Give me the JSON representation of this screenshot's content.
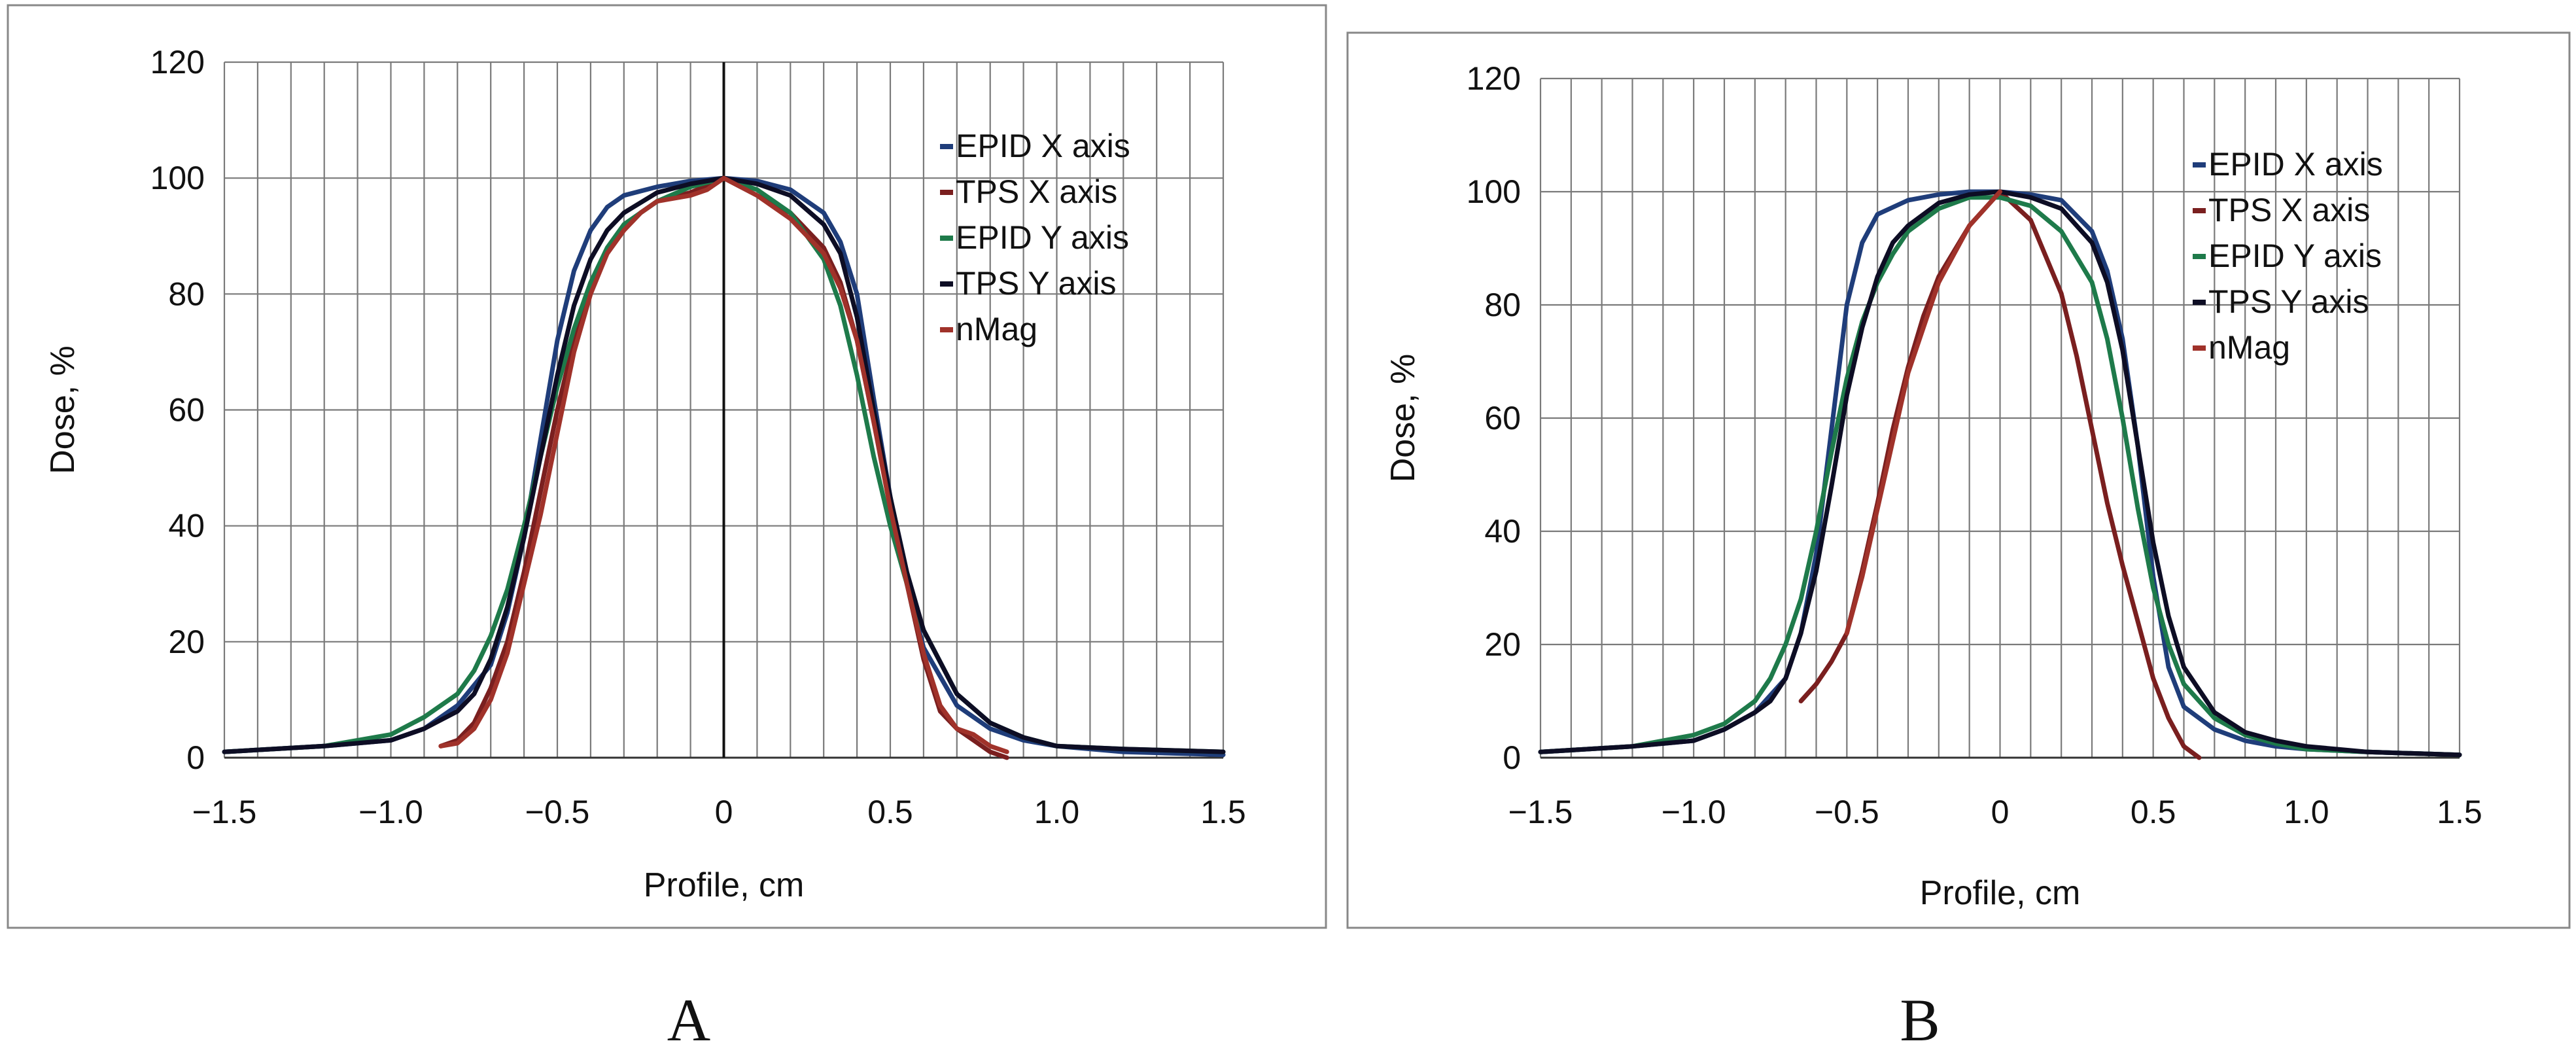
{
  "chart_data": [
    {
      "type": "line",
      "panel_label": "A",
      "title": "",
      "xlabel": "Profile, cm",
      "ylabel": "Dose, %",
      "xlim": [
        -1.5,
        1.5
      ],
      "ylim": [
        0,
        120
      ],
      "xticks": [
        -1.5,
        -1.0,
        -0.5,
        0,
        0.5,
        1.0,
        1.5
      ],
      "xtick_labels": [
        "−1.5",
        "−1.0",
        "−0.5",
        "0",
        "0.5",
        "1.0",
        "1.5"
      ],
      "yticks": [
        0,
        20,
        40,
        60,
        80,
        100,
        120
      ],
      "ytick_labels": [
        "0",
        "20",
        "40",
        "60",
        "80",
        "100",
        "120"
      ],
      "grid": true,
      "legend_position": "top-right",
      "series": [
        {
          "name": "EPID X axis",
          "color": "#1f3d7a",
          "x": [
            -1.5,
            -1.2,
            -1.0,
            -0.9,
            -0.8,
            -0.7,
            -0.65,
            -0.6,
            -0.55,
            -0.5,
            -0.45,
            -0.4,
            -0.35,
            -0.3,
            -0.2,
            -0.1,
            0,
            0.1,
            0.2,
            0.3,
            0.35,
            0.4,
            0.45,
            0.5,
            0.55,
            0.6,
            0.7,
            0.8,
            0.9,
            1.0,
            1.2,
            1.5
          ],
          "y": [
            1,
            2,
            3,
            5,
            9,
            16,
            25,
            38,
            55,
            72,
            84,
            91,
            95,
            97,
            98.5,
            99.5,
            100,
            99.5,
            98,
            94,
            89,
            80,
            62,
            45,
            30,
            19,
            9,
            5,
            3,
            2,
            1,
            0.5
          ]
        },
        {
          "name": "TPS X axis",
          "color": "#7a1f1f",
          "x": [
            -0.85,
            -0.8,
            -0.75,
            -0.7,
            -0.65,
            -0.6,
            -0.55,
            -0.5,
            -0.45,
            -0.4,
            -0.35,
            -0.3,
            -0.25,
            -0.2,
            -0.1,
            0,
            0.1,
            0.2,
            0.3,
            0.35,
            0.4,
            0.45,
            0.5,
            0.55,
            0.6,
            0.65,
            0.7,
            0.75,
            0.8,
            0.85
          ],
          "y": [
            2,
            3,
            6,
            12,
            20,
            32,
            46,
            60,
            72,
            81,
            87,
            91,
            94,
            96,
            97.5,
            100,
            97,
            94,
            88,
            82,
            72,
            58,
            44,
            30,
            17,
            8,
            5,
            3,
            1,
            0
          ]
        },
        {
          "name": "EPID Y axis",
          "color": "#1e7a4a",
          "x": [
            -1.5,
            -1.2,
            -1.0,
            -0.9,
            -0.8,
            -0.75,
            -0.7,
            -0.65,
            -0.6,
            -0.55,
            -0.5,
            -0.45,
            -0.4,
            -0.35,
            -0.3,
            -0.2,
            -0.1,
            0,
            0.1,
            0.2,
            0.3,
            0.35,
            0.4,
            0.45,
            0.5,
            0.55,
            0.6,
            0.7,
            0.8,
            0.9,
            1.0,
            1.2,
            1.5
          ],
          "y": [
            1,
            2,
            4,
            7,
            11,
            15,
            21,
            29,
            40,
            52,
            64,
            74,
            82,
            88,
            92,
            96,
            98.5,
            100,
            98,
            94,
            86,
            78,
            66,
            52,
            40,
            30,
            22,
            11,
            6,
            3.5,
            2,
            1.5,
            1
          ]
        },
        {
          "name": "TPS Y axis",
          "color": "#0d0d24",
          "x": [
            -1.5,
            -1.2,
            -1.0,
            -0.9,
            -0.8,
            -0.75,
            -0.7,
            -0.65,
            -0.6,
            -0.55,
            -0.5,
            -0.45,
            -0.4,
            -0.35,
            -0.3,
            -0.2,
            -0.1,
            0,
            0.1,
            0.2,
            0.3,
            0.35,
            0.4,
            0.45,
            0.5,
            0.55,
            0.6,
            0.7,
            0.8,
            0.9,
            1.0,
            1.2,
            1.5
          ],
          "y": [
            1,
            2,
            3,
            5,
            8,
            11,
            17,
            26,
            38,
            52,
            66,
            78,
            86,
            91,
            94,
            97.5,
            99,
            100,
            99,
            97,
            92,
            87,
            76,
            60,
            45,
            32,
            22,
            11,
            6,
            3.5,
            2,
            1.5,
            1
          ]
        },
        {
          "name": "nMag",
          "color": "#a0322a",
          "x": [
            -0.85,
            -0.8,
            -0.75,
            -0.7,
            -0.65,
            -0.6,
            -0.55,
            -0.5,
            -0.45,
            -0.4,
            -0.35,
            -0.3,
            -0.25,
            -0.2,
            -0.1,
            -0.05,
            0,
            0.1,
            0.2,
            0.3,
            0.35,
            0.4,
            0.45,
            0.5,
            0.55,
            0.6,
            0.65,
            0.7,
            0.75,
            0.8,
            0.85
          ],
          "y": [
            2,
            2.5,
            5,
            10,
            18,
            30,
            42,
            56,
            70,
            80,
            87,
            91,
            94,
            96,
            97,
            98,
            100,
            97,
            93,
            87,
            81,
            72,
            58,
            43,
            30,
            18,
            9,
            5,
            4,
            2,
            1
          ]
        }
      ]
    },
    {
      "type": "line",
      "panel_label": "B",
      "title": "",
      "xlabel": "Profile, cm",
      "ylabel": "Dose, %",
      "xlim": [
        -1.5,
        1.5
      ],
      "ylim": [
        0,
        120
      ],
      "xticks": [
        -1.5,
        -1.0,
        -0.5,
        0,
        0.5,
        1.0,
        1.5
      ],
      "xtick_labels": [
        "−1.5",
        "−1.0",
        "−0.5",
        "0",
        "0.5",
        "1.0",
        "1.5"
      ],
      "yticks": [
        0,
        20,
        40,
        60,
        80,
        100,
        120
      ],
      "ytick_labels": [
        "0",
        "20",
        "40",
        "60",
        "80",
        "100",
        "120"
      ],
      "grid": true,
      "legend_position": "top-right",
      "series": [
        {
          "name": "EPID X axis",
          "color": "#1f3d7a",
          "x": [
            -1.5,
            -1.2,
            -1.0,
            -0.9,
            -0.8,
            -0.7,
            -0.65,
            -0.6,
            -0.55,
            -0.5,
            -0.45,
            -0.4,
            -0.3,
            -0.2,
            -0.1,
            0,
            0.1,
            0.2,
            0.3,
            0.35,
            0.4,
            0.45,
            0.5,
            0.55,
            0.6,
            0.7,
            0.8,
            0.9,
            1.0,
            1.2,
            1.5
          ],
          "y": [
            1,
            2,
            3,
            5,
            8,
            14,
            22,
            36,
            58,
            80,
            91,
            96,
            98.5,
            99.5,
            100,
            100,
            99.5,
            98.5,
            93,
            86,
            74,
            55,
            32,
            16,
            9,
            5,
            3,
            2,
            1.5,
            1,
            0.5
          ]
        },
        {
          "name": "TPS X axis",
          "color": "#7a1f1f",
          "x": [
            -0.65,
            -0.6,
            -0.55,
            -0.5,
            -0.45,
            -0.4,
            -0.35,
            -0.3,
            -0.25,
            -0.2,
            -0.1,
            0,
            0.1,
            0.2,
            0.25,
            0.3,
            0.35,
            0.4,
            0.45,
            0.5,
            0.55,
            0.6,
            0.65
          ],
          "y": [
            10,
            13,
            17,
            22,
            33,
            45,
            58,
            69,
            78,
            85,
            94,
            100,
            95,
            82,
            71,
            58,
            45,
            34,
            24,
            14,
            7,
            2,
            0
          ]
        },
        {
          "name": "EPID Y axis",
          "color": "#1e7a4a",
          "x": [
            -1.5,
            -1.2,
            -1.0,
            -0.9,
            -0.8,
            -0.75,
            -0.7,
            -0.65,
            -0.6,
            -0.55,
            -0.5,
            -0.45,
            -0.4,
            -0.35,
            -0.3,
            -0.2,
            -0.1,
            0,
            0.1,
            0.2,
            0.3,
            0.35,
            0.4,
            0.45,
            0.5,
            0.55,
            0.6,
            0.7,
            0.8,
            0.9,
            1.0,
            1.2,
            1.5
          ],
          "y": [
            1,
            2,
            4,
            6,
            10,
            14,
            20,
            28,
            40,
            54,
            67,
            77,
            84,
            89,
            93,
            97,
            99,
            99,
            97.5,
            93,
            84,
            74,
            60,
            44,
            30,
            20,
            13,
            7,
            4,
            2.5,
            1.5,
            1,
            0.5
          ]
        },
        {
          "name": "TPS Y axis",
          "color": "#0d0d24",
          "x": [
            -1.5,
            -1.2,
            -1.0,
            -0.9,
            -0.8,
            -0.75,
            -0.7,
            -0.65,
            -0.6,
            -0.55,
            -0.5,
            -0.45,
            -0.4,
            -0.35,
            -0.3,
            -0.2,
            -0.1,
            0,
            0.1,
            0.2,
            0.3,
            0.35,
            0.4,
            0.45,
            0.5,
            0.55,
            0.6,
            0.7,
            0.8,
            0.9,
            1.0,
            1.2,
            1.5
          ],
          "y": [
            1,
            2,
            3,
            5,
            8,
            10,
            14,
            22,
            33,
            48,
            64,
            76,
            85,
            91,
            94,
            98,
            99.5,
            100,
            99,
            97,
            91,
            84,
            72,
            55,
            38,
            25,
            16,
            8,
            4.5,
            3,
            2,
            1,
            0.5
          ]
        },
        {
          "name": "nMag",
          "color": "#a0322a",
          "x": [
            -0.5,
            -0.45,
            -0.4,
            -0.35,
            -0.3,
            -0.2,
            -0.1,
            0
          ],
          "y": [
            22,
            32,
            44,
            56,
            68,
            84,
            94,
            100
          ]
        }
      ]
    }
  ]
}
